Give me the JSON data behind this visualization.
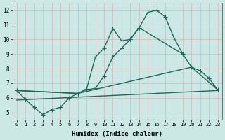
{
  "xlabel": "Humidex (Indice chaleur)",
  "bg_color": "#cce8e4",
  "grid_color": "#d4b8b8",
  "line_color": "#1a6b5a",
  "xlim": [
    -0.5,
    23.5
  ],
  "ylim": [
    4.5,
    12.5
  ],
  "xticks": [
    0,
    1,
    2,
    3,
    4,
    5,
    6,
    7,
    8,
    9,
    10,
    11,
    12,
    13,
    14,
    15,
    16,
    17,
    18,
    19,
    20,
    21,
    22,
    23
  ],
  "yticks": [
    5,
    6,
    7,
    8,
    9,
    10,
    11,
    12
  ],
  "line_width": 1.0,
  "marker_size": 2.5,
  "series": [
    {
      "x": [
        0,
        1,
        2,
        3,
        4,
        5,
        6,
        7,
        8,
        9,
        10,
        11,
        12,
        13,
        14,
        15,
        16,
        17,
        18,
        19
      ],
      "y": [
        6.5,
        5.9,
        5.35,
        4.85,
        5.2,
        5.35,
        6.0,
        6.3,
        6.6,
        8.8,
        9.4,
        10.75,
        9.9,
        10.0,
        10.8,
        11.85,
        12.0,
        11.55,
        10.1,
        9.0
      ],
      "markers": true
    },
    {
      "x": [
        0,
        7,
        8,
        9,
        10,
        11,
        12,
        13,
        14,
        19,
        20,
        21,
        22,
        23
      ],
      "y": [
        6.5,
        6.3,
        6.55,
        6.65,
        7.5,
        8.8,
        9.4,
        10.0,
        10.8,
        9.0,
        8.1,
        7.85,
        7.35,
        6.55
      ],
      "markers": true
    },
    {
      "x": [
        0,
        23
      ],
      "y": [
        5.85,
        6.5
      ],
      "markers": false
    },
    {
      "x": [
        0,
        7,
        20,
        23
      ],
      "y": [
        6.5,
        6.3,
        8.1,
        6.55
      ],
      "markers": false
    }
  ]
}
